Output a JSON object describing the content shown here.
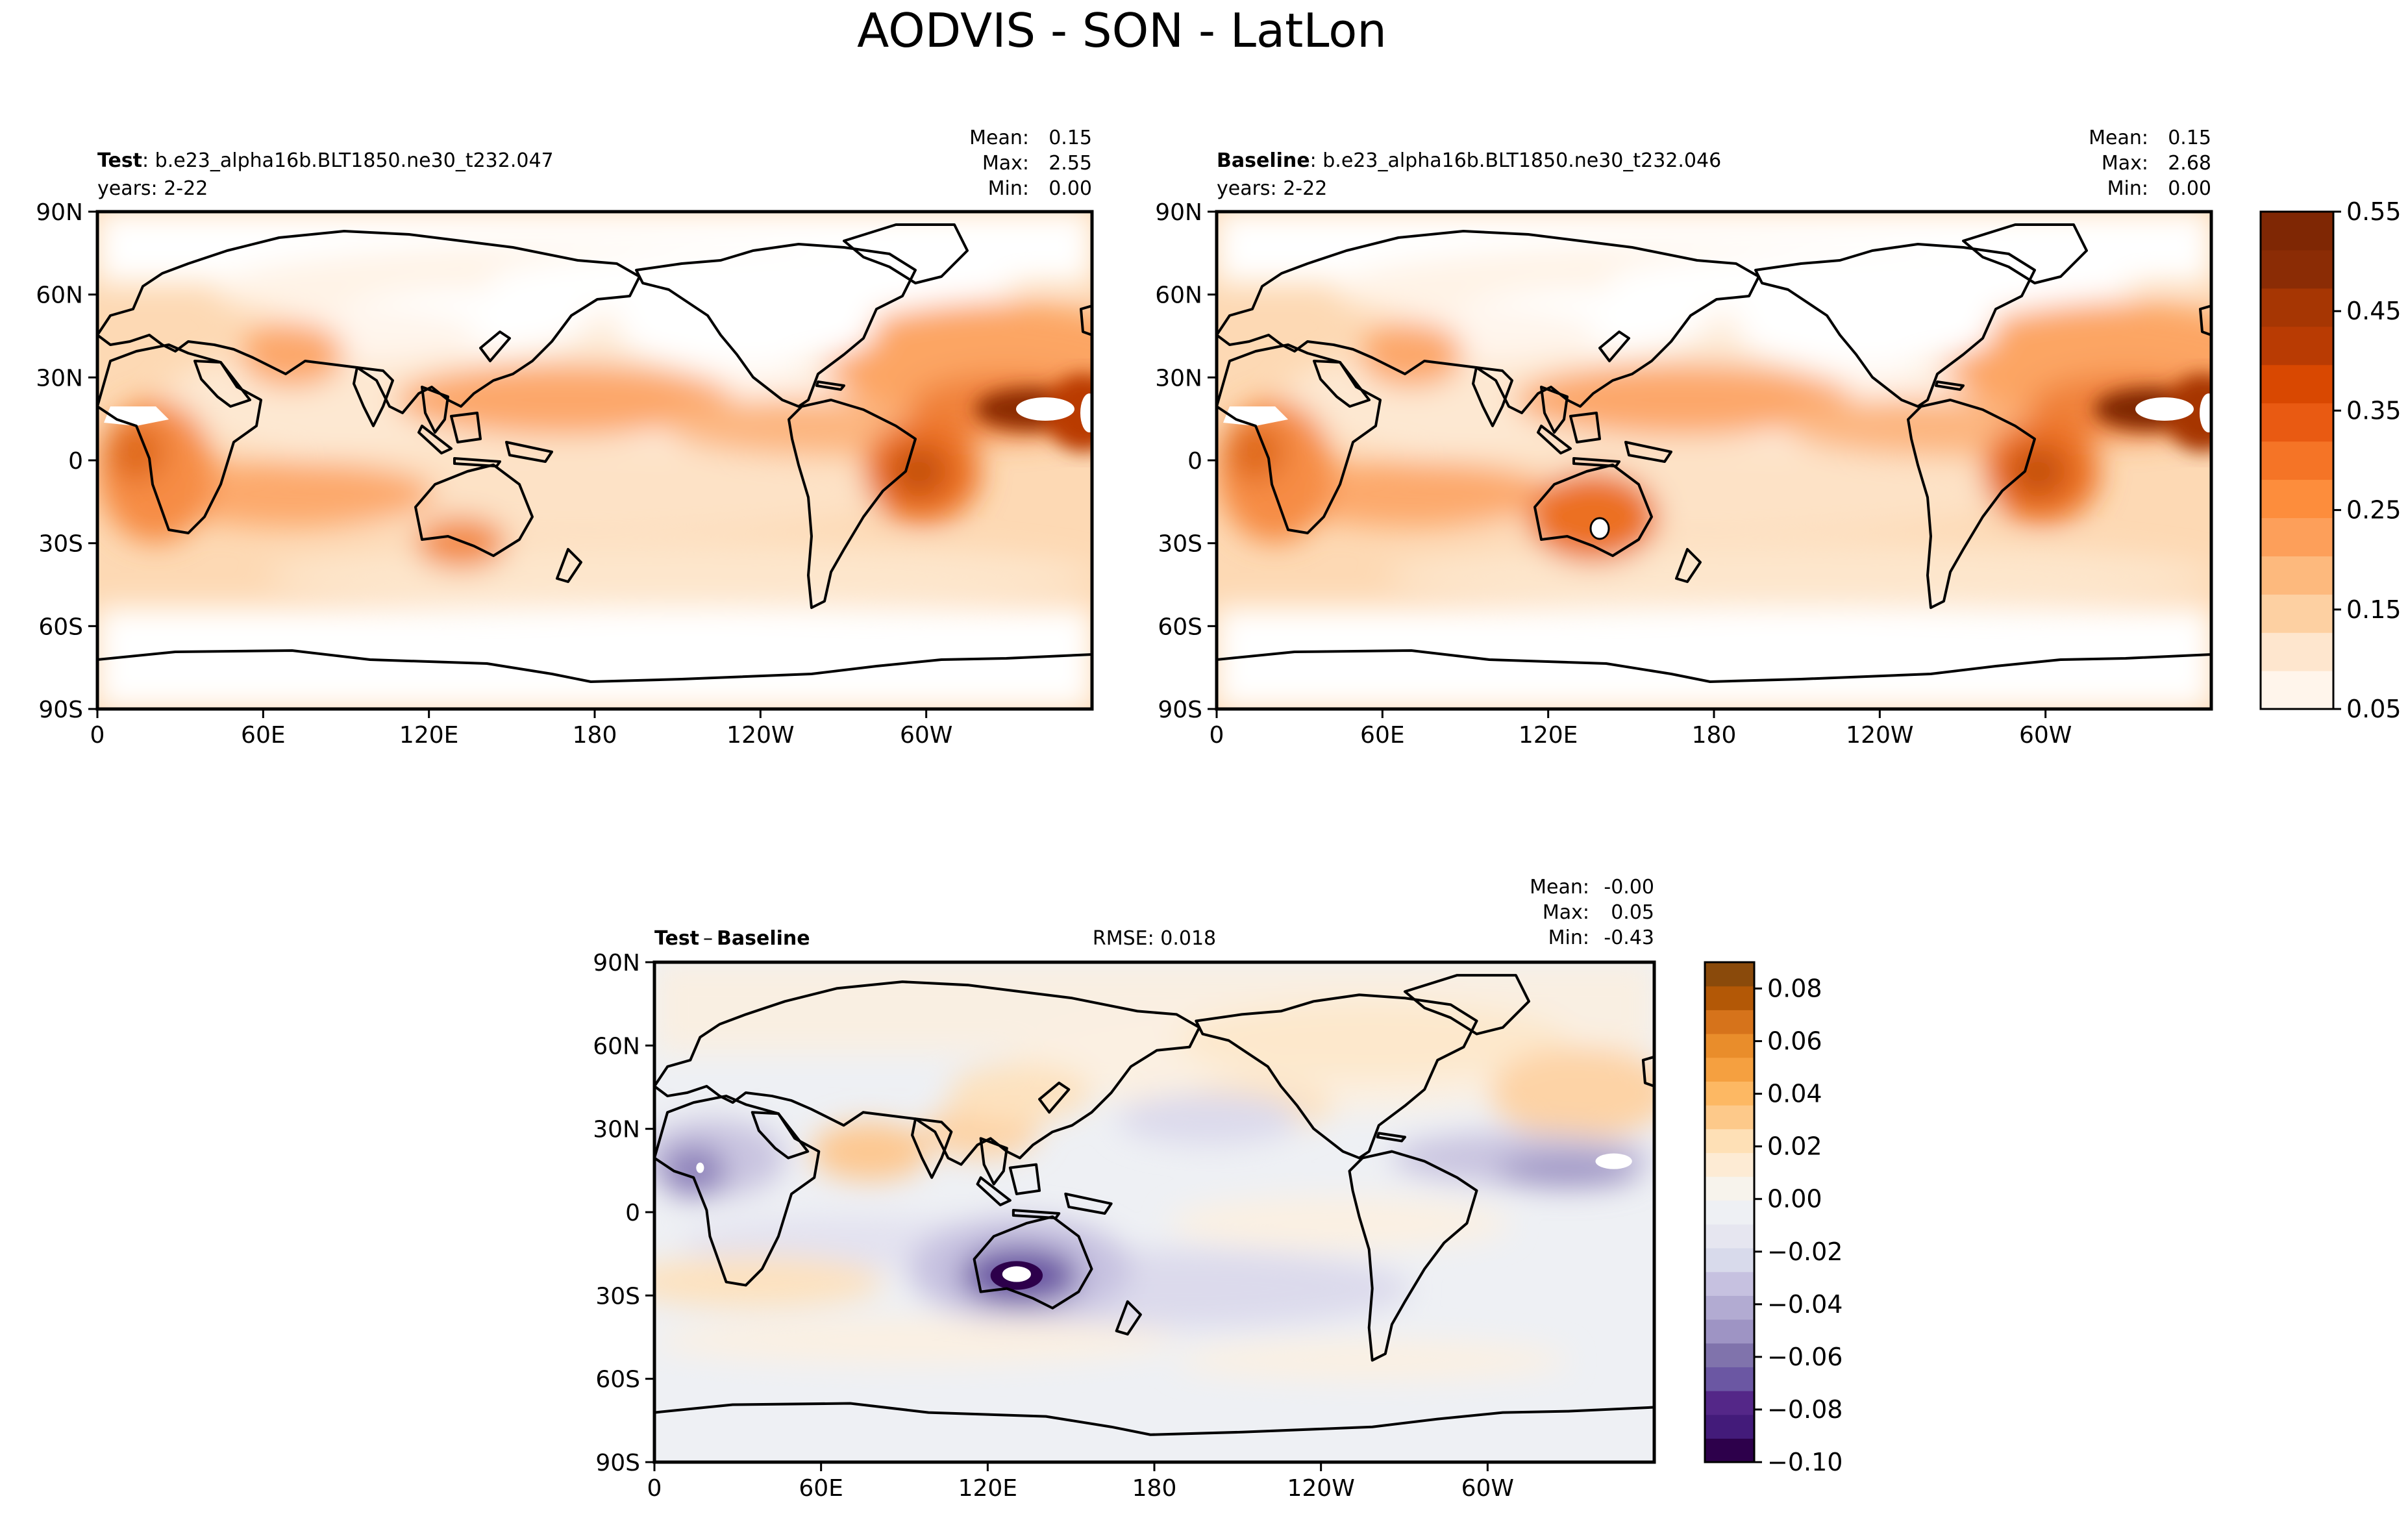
{
  "figure": {
    "title": "AODVIS - SON - LatLon"
  },
  "chart_data": [
    {
      "type": "heatmap",
      "panel": "test",
      "label_bold": "Test",
      "label_text": ": b.e23_alpha16b.BLT1850.ne30_t232.047",
      "subtitle": "years: 2-22",
      "stats": {
        "mean_label": "Mean:",
        "mean": "0.15",
        "max_label": "Max:",
        "max": "2.55",
        "min_label": "Min:",
        "min": "0.00"
      },
      "x_ticks": [
        "0",
        "60E",
        "120E",
        "180",
        "120W",
        "60W"
      ],
      "y_ticks": [
        "90N",
        "60N",
        "30N",
        "0",
        "30S",
        "60S",
        "90S"
      ]
    },
    {
      "type": "heatmap",
      "panel": "baseline",
      "label_bold": "Baseline",
      "label_text": ": b.e23_alpha16b.BLT1850.ne30_t232.046",
      "subtitle": "years: 2-22",
      "stats": {
        "mean_label": "Mean:",
        "mean": "0.15",
        "max_label": "Max:",
        "max": "2.68",
        "min_label": "Min:",
        "min": "0.00"
      },
      "x_ticks": [
        "0",
        "60E",
        "120E",
        "180",
        "120W",
        "60W"
      ],
      "y_ticks": [
        "90N",
        "60N",
        "30N",
        "0",
        "30S",
        "60S",
        "90S"
      ],
      "colorbar": {
        "ticks": [
          "0.55",
          "0.45",
          "0.35",
          "0.25",
          "0.15",
          "0.05"
        ],
        "range": [
          0.05,
          0.55
        ],
        "colors": [
          "#fff5eb",
          "#fee6ce",
          "#fdd0a2",
          "#fdb97d",
          "#fd9f5a",
          "#fd8d3c",
          "#f57426",
          "#e95a12",
          "#d94801",
          "#b93b03",
          "#a63603",
          "#8b2c05",
          "#7f2704"
        ]
      }
    },
    {
      "type": "heatmap",
      "panel": "difference",
      "label_bold_a": "Test",
      "label_minus": "–",
      "label_bold_b": "Baseline",
      "rmse": "RMSE: 0.018",
      "stats": {
        "mean_label": "Mean:",
        "mean": "-0.00",
        "max_label": "Max:",
        "max": "0.05",
        "min_label": "Min:",
        "min": "-0.43"
      },
      "x_ticks": [
        "0",
        "60E",
        "120E",
        "180",
        "120W",
        "60W"
      ],
      "y_ticks": [
        "90N",
        "60N",
        "30N",
        "0",
        "30S",
        "60S",
        "90S"
      ],
      "colorbar": {
        "ticks": [
          "0.08",
          "0.06",
          "0.04",
          "0.02",
          "0.00",
          "−0.02",
          "−0.04",
          "−0.06",
          "−0.08",
          "−0.10"
        ],
        "range": [
          -0.1,
          0.09
        ],
        "colors": [
          "#2d004b",
          "#431b7a",
          "#542788",
          "#6b57a3",
          "#8073ac",
          "#9e94c4",
          "#b2abd2",
          "#c6c1e0",
          "#d8daeb",
          "#e6e6f0",
          "#eef0f4",
          "#f7f3ec",
          "#fdebd4",
          "#fee0b6",
          "#fdc98a",
          "#fdb863",
          "#f5a040",
          "#e98d2b",
          "#d6731b",
          "#b35806",
          "#8a4a0b"
        ]
      }
    }
  ]
}
